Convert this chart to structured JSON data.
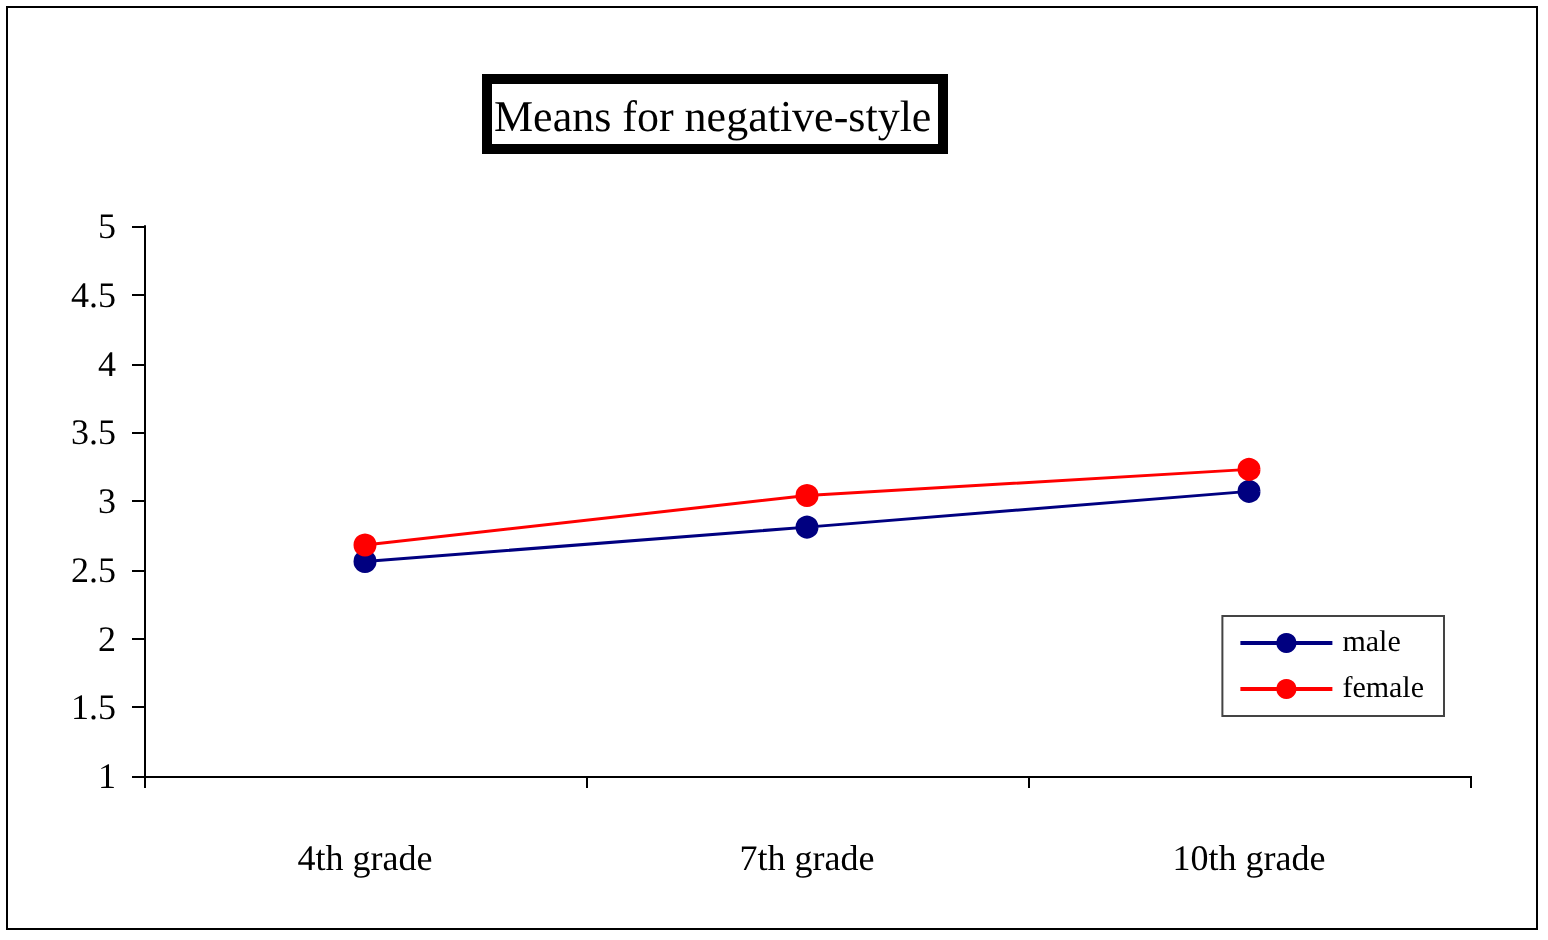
{
  "chart_data": {
    "type": "line",
    "title": "Means for negative-style",
    "categories": [
      "4th grade",
      "7th grade",
      "10th grade"
    ],
    "series": [
      {
        "name": "male",
        "color": "#000080",
        "values": [
          2.56,
          2.81,
          3.07
        ]
      },
      {
        "name": "female",
        "color": "#ff0000",
        "values": [
          2.68,
          3.04,
          3.23
        ]
      }
    ],
    "ylim": [
      1,
      5
    ],
    "yticks": [
      1,
      1.5,
      2,
      2.5,
      3,
      3.5,
      4,
      4.5,
      5
    ],
    "grid": false,
    "legend": "bottom right",
    "marker": "circle",
    "line_style": "solid"
  }
}
